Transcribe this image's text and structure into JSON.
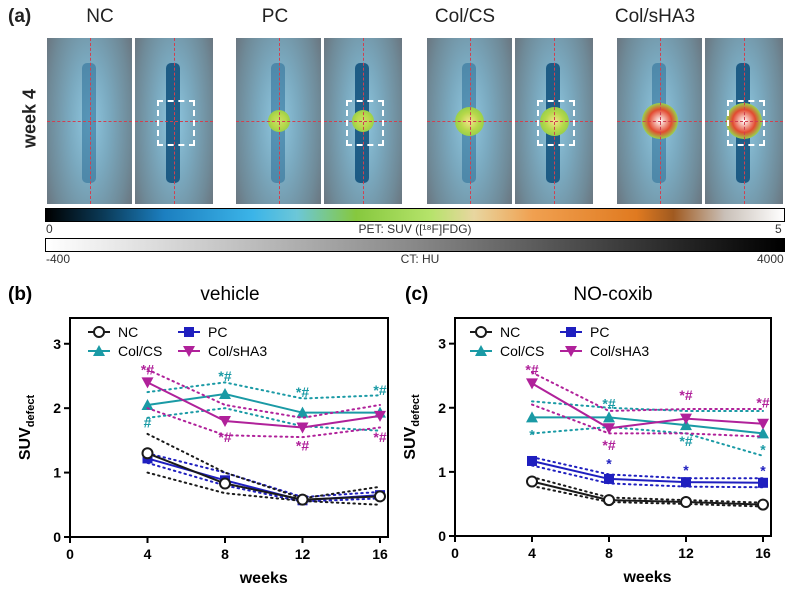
{
  "panel_a": {
    "label": "(a)",
    "row_label": "week 4",
    "columns": [
      "NC",
      "PC",
      "Col/CS",
      "Col/sHA3"
    ],
    "pet_scale": {
      "title": "PET: SUV ([¹⁸F]FDG)",
      "min": "0",
      "max": "5"
    },
    "ct_scale": {
      "title": "CT: HU",
      "min": "-400",
      "max": "4000"
    },
    "hotspot_intensity": [
      0.0,
      0.3,
      0.65,
      1.0
    ]
  },
  "colors": {
    "NC": "#1a1a1a",
    "PC": "#1f1fbf",
    "Col/CS": "#1a9aa5",
    "Col/sHA3": "#b0219a"
  },
  "chart_data": [
    {
      "type": "line",
      "panel_label": "(b)",
      "title": "vehicle",
      "xlabel": "weeks",
      "ylabel": "SUV",
      "ylabel_sub": "defect",
      "x": [
        4,
        8,
        12,
        16
      ],
      "xlim": [
        0,
        16
      ],
      "ylim": [
        0,
        3.4
      ],
      "xticks": [
        "0",
        "4",
        "8",
        "12",
        "16"
      ],
      "yticks": [
        "0",
        "1",
        "2",
        "3"
      ],
      "legend": {
        "position": "top-left",
        "entries": [
          "NC",
          "PC",
          "Col/CS",
          "Col/sHA3"
        ]
      },
      "series": [
        {
          "name": "NC",
          "marker": "circle-open",
          "values": [
            1.3,
            0.83,
            0.58,
            0.63
          ],
          "ci_upper": [
            1.6,
            1.0,
            0.6,
            0.78
          ],
          "ci_lower": [
            1.0,
            0.68,
            0.56,
            0.5
          ]
        },
        {
          "name": "PC",
          "marker": "square",
          "values": [
            1.22,
            0.88,
            0.57,
            0.65
          ],
          "ci_upper": [
            1.3,
            1.0,
            0.62,
            0.7
          ],
          "ci_lower": [
            1.15,
            0.8,
            0.55,
            0.6
          ]
        },
        {
          "name": "Col/CS",
          "marker": "triangle-up",
          "values": [
            2.05,
            2.22,
            1.93,
            1.93
          ],
          "ci_upper": [
            2.25,
            2.4,
            2.15,
            2.2
          ],
          "ci_lower": [
            1.85,
            2.0,
            1.72,
            1.65
          ]
        },
        {
          "name": "Col/sHA3",
          "marker": "triangle-down",
          "values": [
            2.4,
            1.8,
            1.7,
            1.88
          ],
          "ci_upper": [
            2.6,
            2.05,
            1.85,
            2.05
          ],
          "ci_lower": [
            2.0,
            1.58,
            1.55,
            1.7
          ]
        }
      ],
      "annotations": [
        {
          "x": 4,
          "y": 2.6,
          "text": "*#",
          "series": "Col/sHA3"
        },
        {
          "x": 4,
          "y": 1.78,
          "text": "#",
          "series": "Col/CS"
        },
        {
          "x": 8,
          "y": 2.5,
          "text": "*#",
          "series": "Col/CS"
        },
        {
          "x": 8,
          "y": 1.55,
          "text": "*#",
          "series": "Col/sHA3"
        },
        {
          "x": 12,
          "y": 2.25,
          "text": "*#",
          "series": "Col/CS"
        },
        {
          "x": 12,
          "y": 1.42,
          "text": "*#",
          "series": "Col/sHA3"
        },
        {
          "x": 16,
          "y": 2.28,
          "text": "*#",
          "series": "Col/CS"
        },
        {
          "x": 16,
          "y": 1.55,
          "text": "*#",
          "series": "Col/sHA3"
        }
      ]
    },
    {
      "type": "line",
      "panel_label": "(c)",
      "title": "NO-coxib",
      "xlabel": "weeks",
      "ylabel": "SUV",
      "ylabel_sub": "defect",
      "x": [
        4,
        8,
        12,
        16
      ],
      "xlim": [
        0,
        16
      ],
      "ylim": [
        0,
        3.4
      ],
      "xticks": [
        "0",
        "4",
        "8",
        "12",
        "16"
      ],
      "yticks": [
        "0",
        "1",
        "2",
        "3"
      ],
      "legend": {
        "position": "top-left",
        "entries": [
          "NC",
          "PC",
          "Col/CS",
          "Col/sHA3"
        ]
      },
      "series": [
        {
          "name": "NC",
          "marker": "circle-open",
          "values": [
            0.85,
            0.56,
            0.53,
            0.49
          ],
          "ci_upper": [
            0.92,
            0.6,
            0.56,
            0.52
          ],
          "ci_lower": [
            0.78,
            0.53,
            0.5,
            0.46
          ]
        },
        {
          "name": "PC",
          "marker": "square",
          "values": [
            1.17,
            0.89,
            0.84,
            0.83
          ],
          "ci_upper": [
            1.23,
            0.96,
            0.9,
            0.9
          ],
          "ci_lower": [
            1.1,
            0.82,
            0.77,
            0.76
          ]
        },
        {
          "name": "Col/CS",
          "marker": "triangle-up",
          "values": [
            1.85,
            1.85,
            1.73,
            1.6
          ],
          "ci_upper": [
            2.1,
            2.0,
            1.95,
            1.95
          ],
          "ci_lower": [
            1.6,
            1.7,
            1.6,
            1.25
          ]
        },
        {
          "name": "Col/sHA3",
          "marker": "triangle-down",
          "values": [
            2.38,
            1.68,
            1.83,
            1.75
          ],
          "ci_upper": [
            2.55,
            1.95,
            1.98,
            1.98
          ],
          "ci_lower": [
            2.05,
            1.6,
            1.6,
            1.55
          ]
        }
      ],
      "annotations": [
        {
          "x": 4,
          "y": 2.6,
          "text": "*#",
          "series": "Col/sHA3"
        },
        {
          "x": 4,
          "y": 1.58,
          "text": "*",
          "series": "Col/CS"
        },
        {
          "x": 8,
          "y": 2.07,
          "text": "*#",
          "series": "Col/CS"
        },
        {
          "x": 8,
          "y": 1.42,
          "text": "*#",
          "series": "Col/sHA3"
        },
        {
          "x": 8,
          "y": 1.13,
          "text": "*",
          "series": "PC"
        },
        {
          "x": 12,
          "y": 2.2,
          "text": "*#",
          "series": "Col/sHA3"
        },
        {
          "x": 12,
          "y": 1.48,
          "text": "*#",
          "series": "Col/CS"
        },
        {
          "x": 12,
          "y": 1.03,
          "text": "*",
          "series": "PC"
        },
        {
          "x": 16,
          "y": 2.08,
          "text": "*#",
          "series": "Col/sHA3"
        },
        {
          "x": 16,
          "y": 1.35,
          "text": "*",
          "series": "Col/CS"
        },
        {
          "x": 16,
          "y": 1.02,
          "text": "*",
          "series": "PC"
        }
      ]
    }
  ]
}
